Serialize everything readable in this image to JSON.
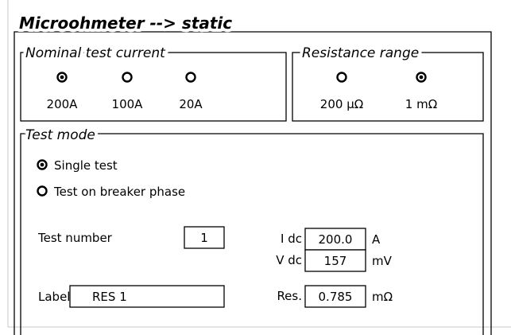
{
  "title": "Microohmeter --> static",
  "nominal_test_current": {
    "label": "Nominal test current",
    "options": [
      {
        "label": "200A",
        "selected": true
      },
      {
        "label": "100A",
        "selected": false
      },
      {
        "label": "20A",
        "selected": false
      }
    ]
  },
  "resistance_range": {
    "label": "Resistance range",
    "options": [
      {
        "label": "200 µΩ",
        "selected": false
      },
      {
        "label": "1 mΩ",
        "selected": true
      }
    ]
  },
  "test_mode": {
    "label": "Test mode",
    "options": [
      {
        "label": "Single test",
        "selected": true
      },
      {
        "label": "Test on breaker phase",
        "selected": false
      }
    ],
    "test_number": {
      "label": "Test number",
      "value": 1
    },
    "label_field": {
      "label": "Label",
      "value": "RES 1"
    },
    "readings": [
      {
        "label": "I dc",
        "value": "200.0",
        "unit": "A"
      },
      {
        "label": "V dc",
        "value": 157,
        "unit": "mV"
      },
      {
        "label": "Res.",
        "value": 0.785,
        "unit": "mΩ"
      }
    ]
  }
}
